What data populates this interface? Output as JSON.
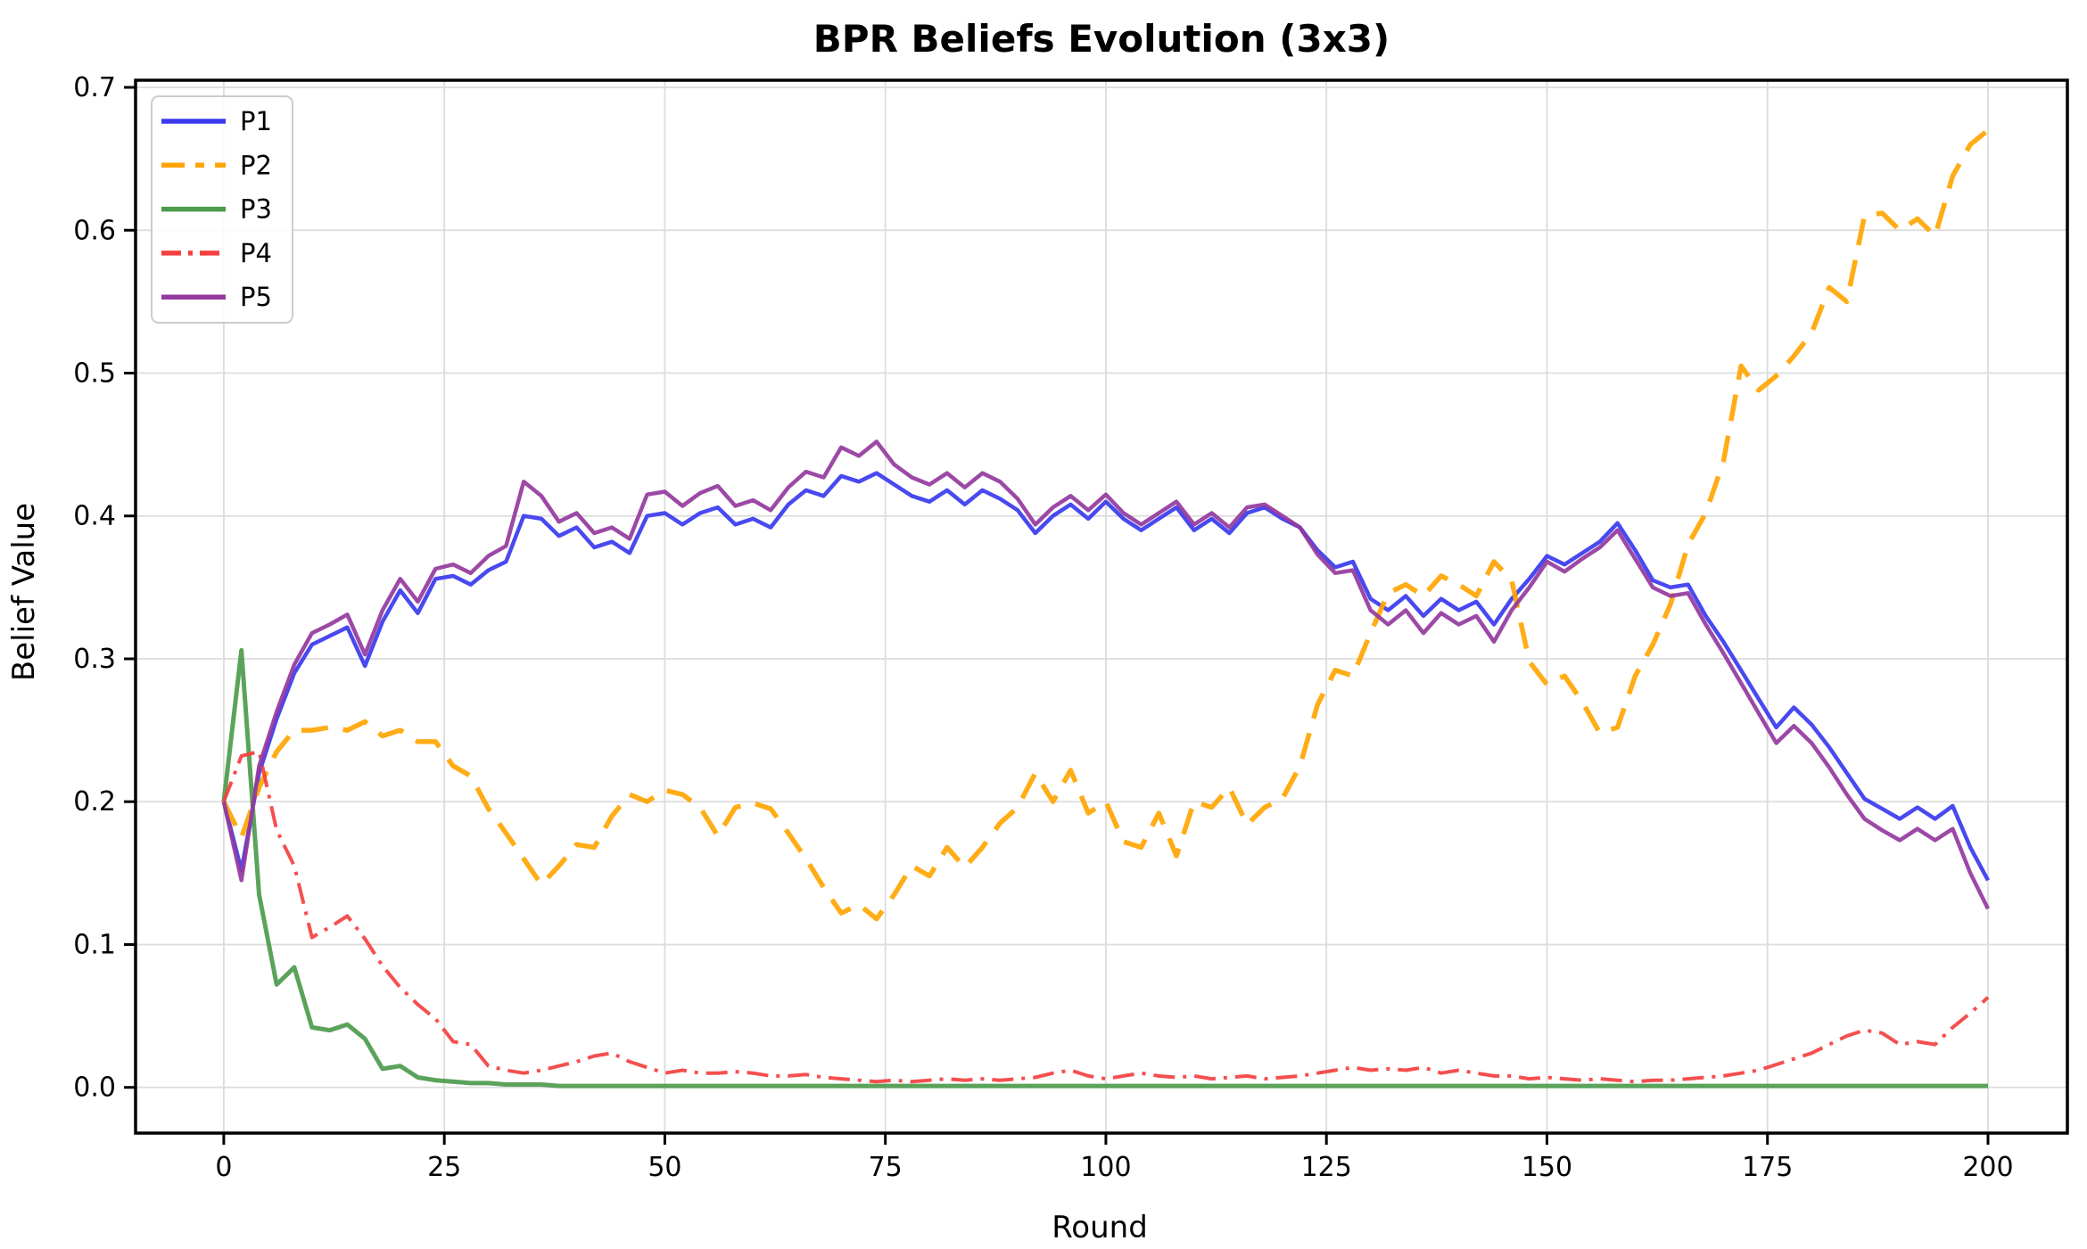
{
  "window": {
    "title": "BPR Beliefs Evolution (3x3)"
  },
  "chart_data": {
    "type": "line",
    "title": "BPR Beliefs Evolution (3x3)",
    "xlabel": "Round",
    "ylabel": "Belief Value",
    "xlim": [
      -10,
      209
    ],
    "ylim": [
      -0.032,
      0.705
    ],
    "grid": true,
    "legend_position": "upper-left",
    "x_ticks": [
      0,
      25,
      50,
      75,
      100,
      125,
      150,
      175,
      200
    ],
    "x_tick_labels": [
      "0",
      "25",
      "50",
      "75",
      "100",
      "125",
      "150",
      "175",
      "200"
    ],
    "y_ticks": [
      0.0,
      0.1,
      0.2,
      0.3,
      0.4,
      0.5,
      0.6,
      0.7
    ],
    "y_tick_labels": [
      "0.0",
      "0.1",
      "0.2",
      "0.3",
      "0.4",
      "0.5",
      "0.6",
      "0.7"
    ],
    "x0": 0,
    "x_step": 2,
    "series": [
      {
        "name": "P1",
        "color": "#3a3aef",
        "style": "solid",
        "width": 4.5,
        "values": [
          0.2,
          0.152,
          0.22,
          0.258,
          0.29,
          0.31,
          0.316,
          0.322,
          0.295,
          0.326,
          0.348,
          0.332,
          0.356,
          0.358,
          0.352,
          0.362,
          0.368,
          0.4,
          0.398,
          0.386,
          0.392,
          0.378,
          0.382,
          0.374,
          0.4,
          0.402,
          0.394,
          0.402,
          0.406,
          0.394,
          0.398,
          0.392,
          0.408,
          0.418,
          0.414,
          0.428,
          0.424,
          0.43,
          0.422,
          0.414,
          0.41,
          0.418,
          0.408,
          0.418,
          0.412,
          0.404,
          0.388,
          0.4,
          0.408,
          0.398,
          0.41,
          0.398,
          0.39,
          0.398,
          0.406,
          0.39,
          0.398,
          0.388,
          0.402,
          0.406,
          0.398,
          0.392,
          0.376,
          0.364,
          0.368,
          0.342,
          0.334,
          0.344,
          0.33,
          0.342,
          0.334,
          0.34,
          0.324,
          0.342,
          0.356,
          0.372,
          0.366,
          0.374,
          0.382,
          0.395,
          0.376,
          0.355,
          0.35,
          0.352,
          0.33,
          0.312,
          0.292,
          0.272,
          0.252,
          0.266,
          0.254,
          0.238,
          0.22,
          0.202,
          0.195,
          0.188,
          0.196,
          0.188,
          0.197,
          0.168,
          0.145
        ]
      },
      {
        "name": "P2",
        "color": "#ffa502",
        "style": "dashed",
        "width": 5.5,
        "values": [
          0.2,
          0.175,
          0.21,
          0.235,
          0.25,
          0.25,
          0.252,
          0.25,
          0.256,
          0.246,
          0.25,
          0.242,
          0.242,
          0.225,
          0.218,
          0.195,
          0.178,
          0.16,
          0.142,
          0.155,
          0.17,
          0.168,
          0.19,
          0.205,
          0.2,
          0.208,
          0.205,
          0.196,
          0.176,
          0.196,
          0.199,
          0.195,
          0.178,
          0.16,
          0.14,
          0.122,
          0.128,
          0.118,
          0.135,
          0.155,
          0.148,
          0.168,
          0.154,
          0.168,
          0.185,
          0.196,
          0.22,
          0.2,
          0.222,
          0.192,
          0.2,
          0.172,
          0.168,
          0.192,
          0.162,
          0.2,
          0.196,
          0.21,
          0.184,
          0.196,
          0.202,
          0.225,
          0.268,
          0.292,
          0.288,
          0.318,
          0.346,
          0.352,
          0.344,
          0.358,
          0.352,
          0.344,
          0.368,
          0.355,
          0.298,
          0.282,
          0.288,
          0.27,
          0.248,
          0.252,
          0.288,
          0.31,
          0.338,
          0.38,
          0.402,
          0.438,
          0.505,
          0.488,
          0.498,
          0.512,
          0.528,
          0.56,
          0.55,
          0.61,
          0.612,
          0.6,
          0.608,
          0.596,
          0.638,
          0.66,
          0.67
        ]
      },
      {
        "name": "P3",
        "color": "#4d9b4d",
        "style": "solid",
        "width": 5,
        "values": [
          0.2,
          0.306,
          0.135,
          0.072,
          0.084,
          0.042,
          0.04,
          0.044,
          0.034,
          0.013,
          0.015,
          0.007,
          0.005,
          0.004,
          0.003,
          0.003,
          0.002,
          0.002,
          0.002,
          0.001,
          0.001,
          0.001,
          0.001,
          0.001,
          0.001,
          0.001,
          0.001,
          0.001,
          0.001,
          0.001,
          0.001,
          0.001,
          0.001,
          0.001,
          0.001,
          0.001,
          0.001,
          0.001,
          0.001,
          0.001,
          0.001,
          0.001,
          0.001,
          0.001,
          0.001,
          0.001,
          0.001,
          0.001,
          0.001,
          0.001,
          0.001,
          0.001,
          0.001,
          0.001,
          0.001,
          0.001,
          0.001,
          0.001,
          0.001,
          0.001,
          0.001,
          0.001,
          0.001,
          0.001,
          0.001,
          0.001,
          0.001,
          0.001,
          0.001,
          0.001,
          0.001,
          0.001,
          0.001,
          0.001,
          0.001,
          0.001,
          0.001,
          0.001,
          0.001,
          0.001,
          0.001,
          0.001,
          0.001,
          0.001,
          0.001,
          0.001,
          0.001,
          0.001,
          0.001,
          0.001,
          0.001,
          0.001,
          0.001,
          0.001,
          0.001,
          0.001,
          0.001,
          0.001,
          0.001,
          0.001,
          0.001
        ]
      },
      {
        "name": "P4",
        "color": "#f44040",
        "style": "dashdot",
        "width": 4,
        "values": [
          0.2,
          0.232,
          0.235,
          0.18,
          0.155,
          0.105,
          0.112,
          0.12,
          0.104,
          0.085,
          0.07,
          0.058,
          0.048,
          0.032,
          0.03,
          0.015,
          0.012,
          0.01,
          0.012,
          0.015,
          0.018,
          0.022,
          0.024,
          0.018,
          0.014,
          0.01,
          0.012,
          0.01,
          0.01,
          0.011,
          0.01,
          0.008,
          0.008,
          0.009,
          0.007,
          0.006,
          0.005,
          0.004,
          0.005,
          0.004,
          0.005,
          0.006,
          0.005,
          0.006,
          0.005,
          0.006,
          0.007,
          0.01,
          0.012,
          0.008,
          0.006,
          0.008,
          0.01,
          0.008,
          0.007,
          0.008,
          0.006,
          0.007,
          0.008,
          0.006,
          0.007,
          0.008,
          0.01,
          0.012,
          0.014,
          0.012,
          0.013,
          0.012,
          0.014,
          0.01,
          0.012,
          0.01,
          0.008,
          0.008,
          0.006,
          0.007,
          0.006,
          0.005,
          0.006,
          0.005,
          0.004,
          0.005,
          0.005,
          0.006,
          0.007,
          0.008,
          0.01,
          0.012,
          0.016,
          0.02,
          0.024,
          0.03,
          0.036,
          0.04,
          0.038,
          0.03,
          0.032,
          0.03,
          0.042,
          0.052,
          0.063
        ]
      },
      {
        "name": "P5",
        "color": "#94399e",
        "style": "solid",
        "width": 4.5,
        "values": [
          0.2,
          0.145,
          0.225,
          0.263,
          0.296,
          0.318,
          0.324,
          0.331,
          0.303,
          0.334,
          0.356,
          0.34,
          0.363,
          0.366,
          0.36,
          0.372,
          0.379,
          0.424,
          0.414,
          0.396,
          0.402,
          0.388,
          0.392,
          0.384,
          0.415,
          0.417,
          0.407,
          0.416,
          0.421,
          0.407,
          0.411,
          0.404,
          0.42,
          0.431,
          0.427,
          0.448,
          0.442,
          0.452,
          0.436,
          0.427,
          0.422,
          0.43,
          0.42,
          0.43,
          0.424,
          0.412,
          0.394,
          0.406,
          0.414,
          0.404,
          0.415,
          0.402,
          0.394,
          0.402,
          0.41,
          0.394,
          0.402,
          0.392,
          0.406,
          0.408,
          0.4,
          0.392,
          0.373,
          0.36,
          0.362,
          0.334,
          0.324,
          0.334,
          0.318,
          0.332,
          0.324,
          0.33,
          0.312,
          0.334,
          0.35,
          0.368,
          0.361,
          0.37,
          0.378,
          0.39,
          0.37,
          0.35,
          0.344,
          0.346,
          0.324,
          0.304,
          0.283,
          0.262,
          0.241,
          0.253,
          0.241,
          0.224,
          0.205,
          0.188,
          0.18,
          0.173,
          0.181,
          0.173,
          0.181,
          0.15,
          0.125
        ]
      }
    ],
    "colors": {
      "grid": "#dcdcdc",
      "spine": "#000000",
      "background": "#ffffff",
      "legend_border": "#cccccc"
    }
  }
}
